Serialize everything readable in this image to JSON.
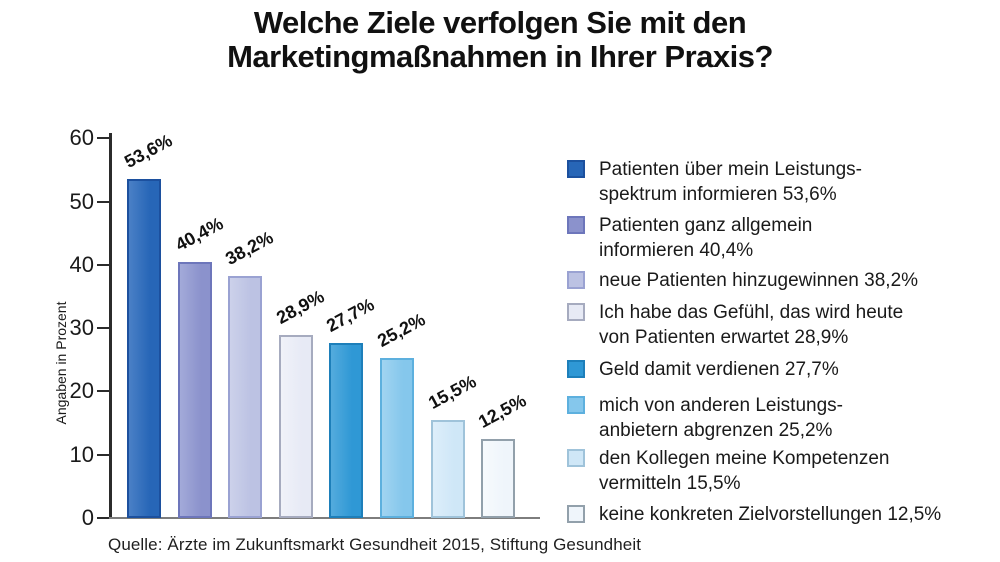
{
  "title": {
    "line1": "Welche Ziele verfolgen Sie mit den",
    "line2": "Marketingmaßnahmen in Ihrer Praxis?"
  },
  "source": "Quelle:  Ärzte im Zukunftsmarkt Gesundheit 2015, Stiftung Gesundheit",
  "chart_data": {
    "type": "bar",
    "title": "Welche Ziele verfolgen Sie mit den Marketingmaßnahmen in Ihrer Praxis?",
    "xlabel": "",
    "ylabel": "Angaben in Prozent",
    "ylim": [
      0,
      60
    ],
    "yticks": [
      0,
      10,
      20,
      30,
      40,
      50,
      60
    ],
    "grid": false,
    "legend_position": "right",
    "categories": [
      "Patienten über mein Leistungsspektrum informieren",
      "Patienten ganz allgemein informieren",
      "neue Patienten hinzugewinnen",
      "Ich habe das Gefühl, das wird heute von Patienten erwartet",
      "Geld damit verdienen",
      "mich von anderen Leistungsanbietern abgrenzen",
      "den Kollegen meine Kompetenzen vermitteln",
      "keine konkreten Zielvorstellungen"
    ],
    "values": [
      53.6,
      40.4,
      38.2,
      28.9,
      27.7,
      25.2,
      15.5,
      12.5
    ],
    "value_labels": [
      "53,6%",
      "40,4%",
      "38,2%",
      "28,9%",
      "27,7%",
      "25,2%",
      "15,5%",
      "12,5%"
    ],
    "bar_fills": [
      "#2766b7",
      "#8b92cc",
      "#bcc2e3",
      "#e7eaf5",
      "#2f98d5",
      "#85c7ec",
      "#cfe7f7",
      "#eff5fb"
    ],
    "bar_fills_light": [
      "#4a80c6",
      "#a3aad9",
      "#ccd1ea",
      "#f0f2f9",
      "#54abdd",
      "#a1d4f1",
      "#ddeefa",
      "#f7fafd"
    ],
    "bar_borders": [
      "#1c509e",
      "#6d76bb",
      "#9aa2d2",
      "#a6abbf",
      "#1d7fba",
      "#5db0de",
      "#9fc3da",
      "#92a0ab"
    ]
  },
  "legend": {
    "items": [
      {
        "lines": [
          "Patienten über mein Leistungs-",
          "spektrum informieren 53,6%"
        ]
      },
      {
        "lines": [
          "Patienten ganz allgemein",
          "informieren 40,4%"
        ]
      },
      {
        "lines": [
          "neue Patienten hinzugewinnen 38,2%"
        ]
      },
      {
        "lines": [
          "Ich habe das Gefühl, das wird heute",
          "von Patienten erwartet 28,9%"
        ]
      },
      {
        "lines": [
          "Geld damit verdienen 27,7%"
        ]
      },
      {
        "lines": [
          "mich von anderen Leistungs-",
          "anbietern abgrenzen 25,2%"
        ]
      },
      {
        "lines": [
          "den Kollegen meine Kompetenzen",
          "vermitteln 15,5%"
        ]
      },
      {
        "lines": [
          "keine konkreten Zielvorstellungen 12,5%"
        ]
      }
    ]
  }
}
